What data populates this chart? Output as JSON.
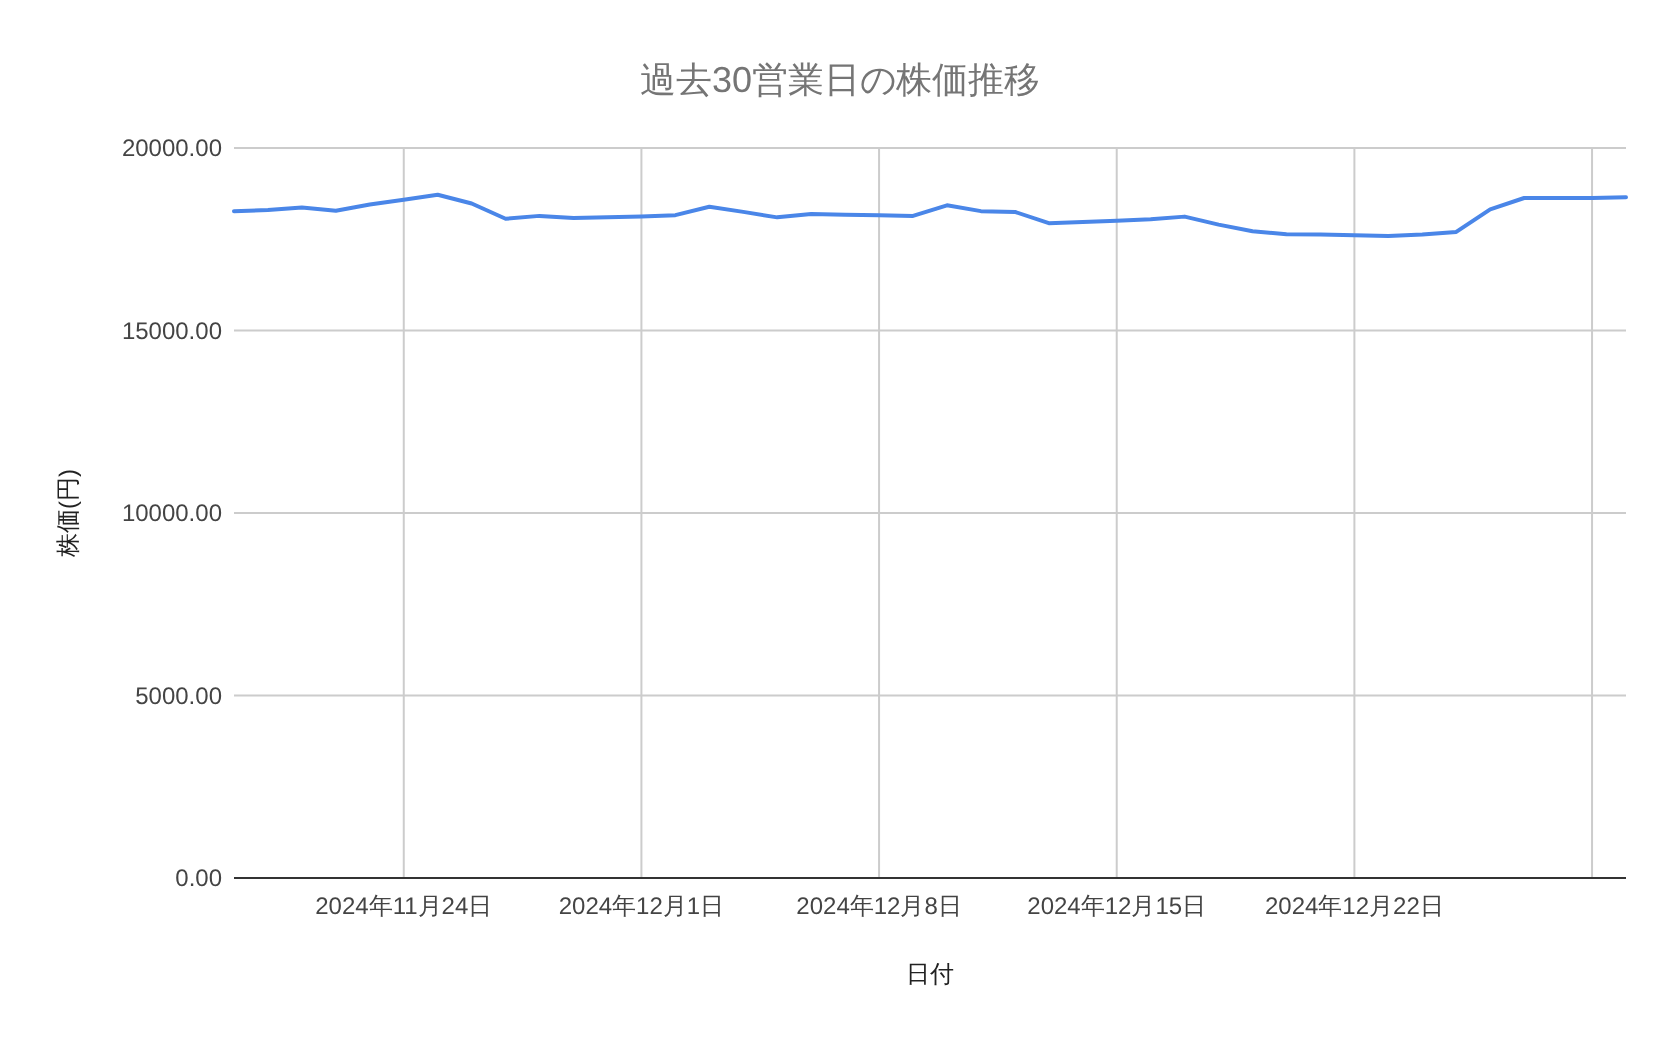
{
  "chart_data": {
    "type": "line",
    "title": "過去30営業日の株価推移",
    "xlabel": "日付",
    "ylabel": "株価(円)",
    "x": [
      "2024-11-19",
      "2024-11-20",
      "2024-11-21",
      "2024-11-22",
      "2024-11-23",
      "2024-11-24",
      "2024-11-25",
      "2024-11-26",
      "2024-11-27",
      "2024-11-28",
      "2024-11-29",
      "2024-11-30",
      "2024-12-01",
      "2024-12-02",
      "2024-12-03",
      "2024-12-04",
      "2024-12-05",
      "2024-12-06",
      "2024-12-07",
      "2024-12-08",
      "2024-12-09",
      "2024-12-10",
      "2024-12-11",
      "2024-12-12",
      "2024-12-13",
      "2024-12-14",
      "2024-12-15",
      "2024-12-16",
      "2024-12-17",
      "2024-12-18",
      "2024-12-19",
      "2024-12-20",
      "2024-12-21",
      "2024-12-22",
      "2024-12-23",
      "2024-12-24",
      "2024-12-25",
      "2024-12-26",
      "2024-12-27",
      "2024-12-28",
      "2024-12-29",
      "2024-12-30"
    ],
    "series": [
      {
        "color": "#4a86e8",
        "values": [
          18270,
          18300,
          18370,
          18280,
          18450,
          18580,
          18720,
          18480,
          18060,
          18140,
          18080,
          18100,
          18120,
          18160,
          18390,
          18250,
          18100,
          18190,
          18170,
          18160,
          18140,
          18430,
          18270,
          18250,
          17940,
          17970,
          18010,
          18050,
          18120,
          17900,
          17720,
          17640,
          17630,
          17610,
          17590,
          17630,
          17700,
          18320,
          18630,
          18630,
          18630,
          18650
        ]
      }
    ],
    "xlim": [
      "2024-11-19",
      "2024-12-30"
    ],
    "xticks": [
      {
        "value": "2024-11-24",
        "label": "2024年11月24日"
      },
      {
        "value": "2024-12-01",
        "label": "2024年12月1日"
      },
      {
        "value": "2024-12-08",
        "label": "2024年12月8日"
      },
      {
        "value": "2024-12-15",
        "label": "2024年12月15日"
      },
      {
        "value": "2024-12-22",
        "label": "2024年12月22日"
      },
      {
        "value": "2024-12-29",
        "label": null
      }
    ],
    "ylim": [
      0,
      20000
    ],
    "yticks": [
      {
        "value": 0,
        "label": "0.00"
      },
      {
        "value": 5000,
        "label": "5000.00"
      },
      {
        "value": 10000,
        "label": "10000.00"
      },
      {
        "value": 15000,
        "label": "15000.00"
      },
      {
        "value": 20000,
        "label": "20000.00"
      }
    ],
    "grid": true
  }
}
